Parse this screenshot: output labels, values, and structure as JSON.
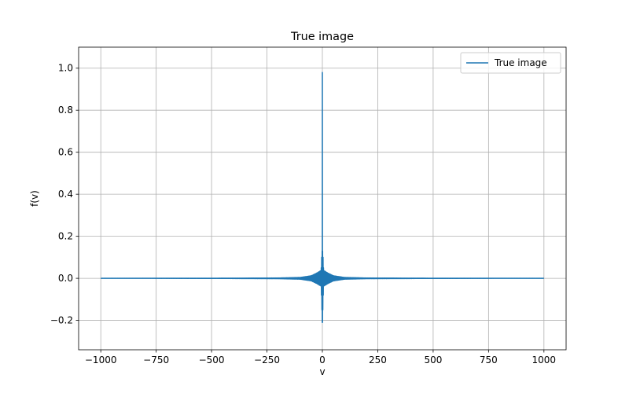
{
  "chart_data": {
    "type": "line",
    "title": "True image",
    "xlabel": "v",
    "ylabel": "f(v)",
    "xlim": [
      -1100,
      1100
    ],
    "ylim": [
      -0.34,
      1.1
    ],
    "x_ticks": [
      -1000,
      -750,
      -500,
      -250,
      0,
      250,
      500,
      750,
      1000
    ],
    "x_tick_labels": [
      "−1000",
      "−750",
      "−500",
      "−250",
      "0",
      "250",
      "500",
      "750",
      "1000"
    ],
    "y_ticks": [
      -0.2,
      0.0,
      0.2,
      0.4,
      0.6,
      0.8,
      1.0
    ],
    "y_tick_labels": [
      "−0.2",
      "0.0",
      "0.2",
      "0.4",
      "0.6",
      "0.8",
      "1.0"
    ],
    "grid": true,
    "legend_position": "top-right",
    "series": [
      {
        "name": "True image",
        "color": "#1f77b4",
        "x_range": [
          -1000,
          1000
        ],
        "peak": {
          "x": 0,
          "y": 0.98
        },
        "min_value": -0.21,
        "max_side_lobe": 0.13,
        "envelope": [
          {
            "x": 0,
            "y": 0.04
          },
          {
            "x": 10,
            "y": 0.035
          },
          {
            "x": 25,
            "y": 0.025
          },
          {
            "x": 50,
            "y": 0.012
          },
          {
            "x": 100,
            "y": 0.004
          },
          {
            "x": 200,
            "y": 0.0015
          },
          {
            "x": 500,
            "y": 0.0005
          },
          {
            "x": 1000,
            "y": 0.0002
          }
        ]
      }
    ]
  }
}
